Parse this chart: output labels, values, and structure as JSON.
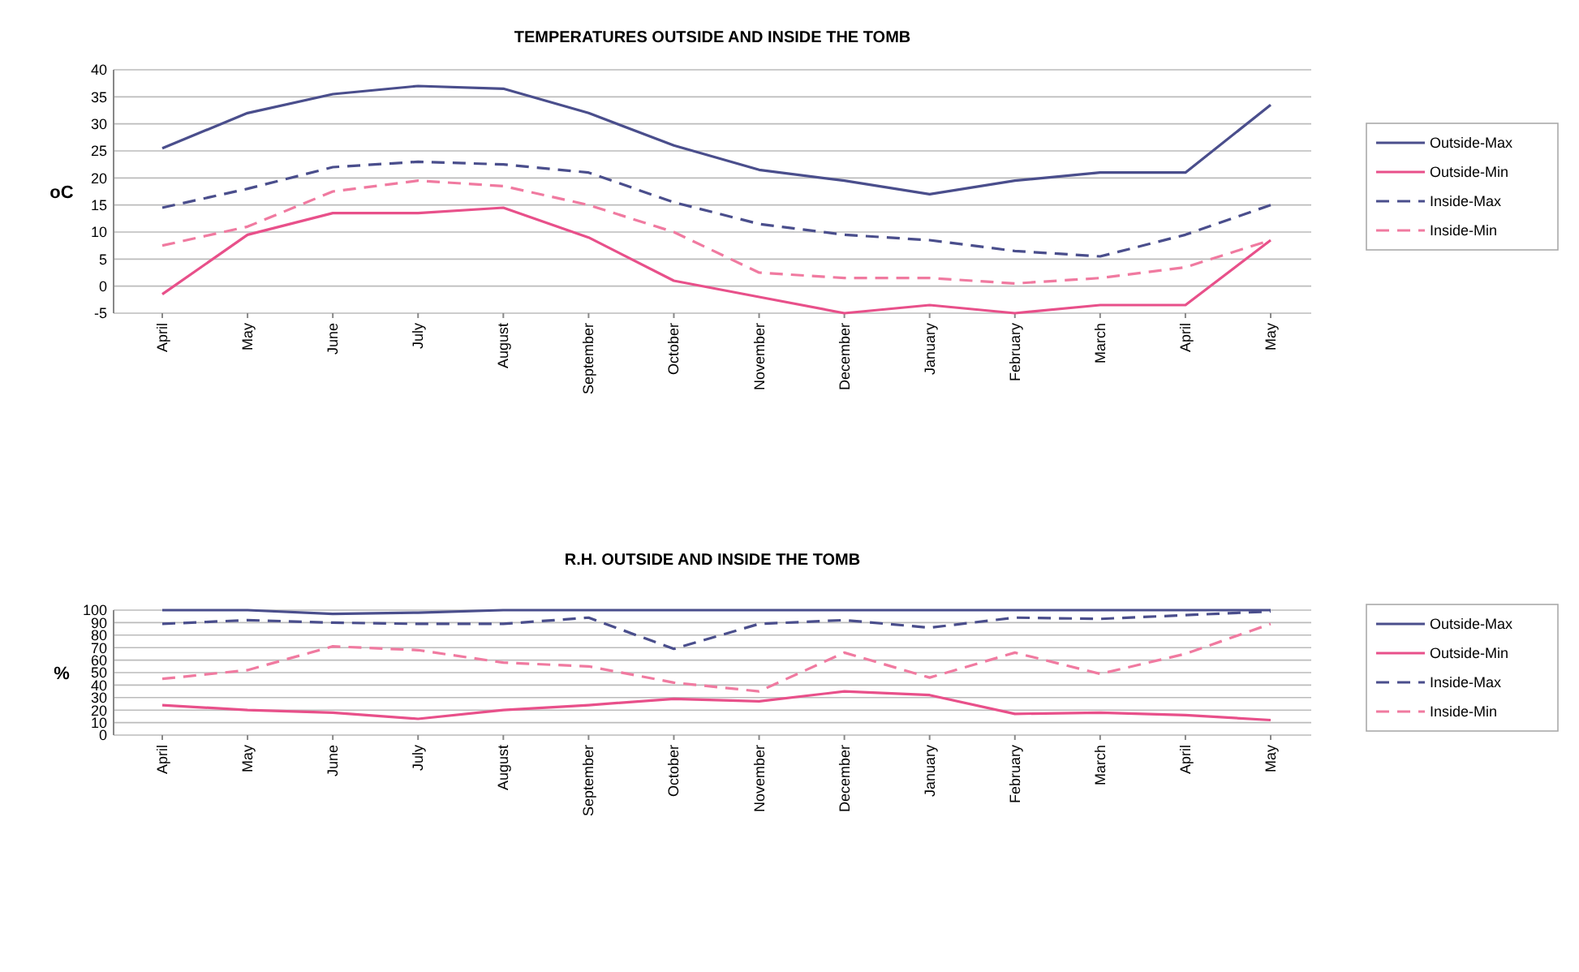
{
  "chart_data": [
    {
      "type": "line",
      "title": "TEMPERATURES OUTSIDE AND INSIDE THE TOMB",
      "ylabel": "oC",
      "categories": [
        "April",
        "May",
        "June",
        "July",
        "August",
        "September",
        "October",
        "November",
        "December",
        "January",
        "February",
        "March",
        "April",
        "May"
      ],
      "ylim": [
        -5,
        40
      ],
      "yticks": [
        -5,
        0,
        5,
        10,
        15,
        20,
        25,
        30,
        35,
        40
      ],
      "grid": "y",
      "legend": "right",
      "marker": "none",
      "series": [
        {
          "name": "Outside-Max",
          "color": "#4a4e8c",
          "line_style": "solid",
          "values": [
            25.5,
            32,
            35.5,
            37,
            36.5,
            32,
            26,
            21.5,
            19.5,
            17,
            19.5,
            21,
            21,
            33.5
          ]
        },
        {
          "name": "Outside-Min",
          "color": "#e8508a",
          "line_style": "solid",
          "values": [
            -1.5,
            9.5,
            13.5,
            13.5,
            14.5,
            9,
            1,
            -2,
            -5,
            -3.5,
            -5,
            -3.5,
            -3.5,
            8.5
          ]
        },
        {
          "name": "Inside-Max",
          "color": "#4a4e8c",
          "line_style": "dashed",
          "values": [
            14.5,
            18,
            22,
            23,
            22.5,
            21,
            15.5,
            11.5,
            9.5,
            8.5,
            6.5,
            5.5,
            9.5,
            15
          ]
        },
        {
          "name": "Inside-Min",
          "color": "#f07aa0",
          "line_style": "dashed",
          "values": [
            7.5,
            11,
            17.5,
            19.5,
            18.5,
            15,
            10,
            2.5,
            1.5,
            1.5,
            0.5,
            1.5,
            3.5,
            8.5
          ]
        }
      ]
    },
    {
      "type": "line",
      "title": "R.H. OUTSIDE AND INSIDE THE TOMB",
      "ylabel": "%",
      "categories": [
        "April",
        "May",
        "June",
        "July",
        "August",
        "September",
        "October",
        "November",
        "December",
        "January",
        "February",
        "March",
        "April",
        "May"
      ],
      "ylim": [
        0,
        100
      ],
      "yticks": [
        0,
        10,
        20,
        30,
        40,
        50,
        60,
        70,
        80,
        90,
        100
      ],
      "grid": "y",
      "legend": "right",
      "marker": "none",
      "series": [
        {
          "name": "Outside-Max",
          "color": "#4a4e8c",
          "line_style": "solid",
          "values": [
            100,
            100,
            97,
            98,
            100,
            100,
            100,
            100,
            100,
            100,
            100,
            100,
            100,
            100
          ]
        },
        {
          "name": "Outside-Min",
          "color": "#e8508a",
          "line_style": "solid",
          "values": [
            24,
            20,
            18,
            13,
            20,
            24,
            29,
            27,
            35,
            32,
            17,
            18,
            16,
            12
          ]
        },
        {
          "name": "Inside-Max",
          "color": "#4a4e8c",
          "line_style": "dashed",
          "values": [
            89,
            92,
            90,
            89,
            89,
            94,
            69,
            89,
            92,
            86,
            94,
            93,
            96,
            99
          ]
        },
        {
          "name": "Inside-Min",
          "color": "#f07aa0",
          "line_style": "dashed",
          "values": [
            45,
            52,
            71,
            68,
            58,
            55,
            42,
            35,
            66,
            46,
            66,
            49,
            65,
            89
          ]
        }
      ]
    }
  ]
}
